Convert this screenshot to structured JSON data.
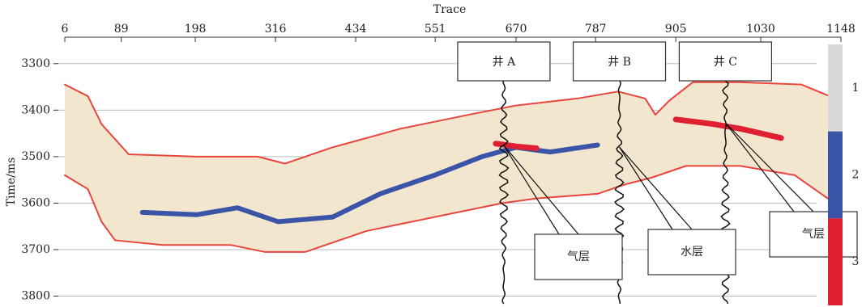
{
  "chart_data": {
    "type": "section",
    "x_label": "Trace",
    "y_label": "Time/ms",
    "xlim": [
      6,
      1148
    ],
    "ylim": [
      3250,
      3820
    ],
    "xticks": [
      6,
      89,
      198,
      316,
      434,
      551,
      670,
      787,
      905,
      1030,
      1148
    ],
    "yticks": [
      3300,
      3400,
      3500,
      3600,
      3700,
      3800
    ],
    "grid": true,
    "fill_color": "#f3e6cf",
    "series": [
      {
        "color": "#e8453c",
        "x": [
          6,
          40,
          60,
          100,
          200,
          290,
          330,
          400,
          500,
          600,
          670,
          760,
          820,
          860,
          875,
          895,
          930,
          1000,
          1090,
          1148
        ],
        "values": [
          3345,
          3370,
          3430,
          3495,
          3500,
          3500,
          3515,
          3480,
          3440,
          3410,
          3390,
          3375,
          3360,
          3375,
          3410,
          3380,
          3340,
          3340,
          3345,
          3380
        ]
      },
      {
        "color": "#e8453c",
        "x": [
          6,
          40,
          60,
          80,
          150,
          250,
          300,
          360,
          450,
          550,
          650,
          700,
          790,
          830,
          870,
          920,
          1000,
          1080,
          1148
        ],
        "values": [
          3540,
          3570,
          3640,
          3680,
          3690,
          3690,
          3705,
          3705,
          3660,
          3630,
          3600,
          3590,
          3580,
          3560,
          3545,
          3520,
          3520,
          3540,
          3610
        ]
      },
      {
        "color": "#3a55a8",
        "x": [
          120,
          200,
          260,
          320,
          400,
          470,
          550,
          620,
          670,
          720,
          790
        ],
        "values": [
          3620,
          3625,
          3610,
          3640,
          3630,
          3580,
          3540,
          3500,
          3480,
          3490,
          3475
        ]
      },
      {
        "color": "#e02030",
        "x": [
          640,
          670,
          700
        ],
        "values": [
          3472,
          3478,
          3482
        ]
      },
      {
        "color": "#e02030",
        "x": [
          905,
          960,
          1000,
          1060
        ],
        "values": [
          3420,
          3430,
          3440,
          3460
        ]
      }
    ],
    "wells": [
      {
        "label": "井 A",
        "trace": 652
      },
      {
        "label": "井 B",
        "trace": 822
      },
      {
        "label": "井 C",
        "trace": 978
      }
    ],
    "layer_labels": [
      "气层",
      "水层",
      "气层"
    ],
    "colorbar": {
      "colors": [
        "#d8d8d8",
        "#3a55a8",
        "#e02030"
      ],
      "labels": [
        "1",
        "2",
        "3"
      ]
    }
  }
}
